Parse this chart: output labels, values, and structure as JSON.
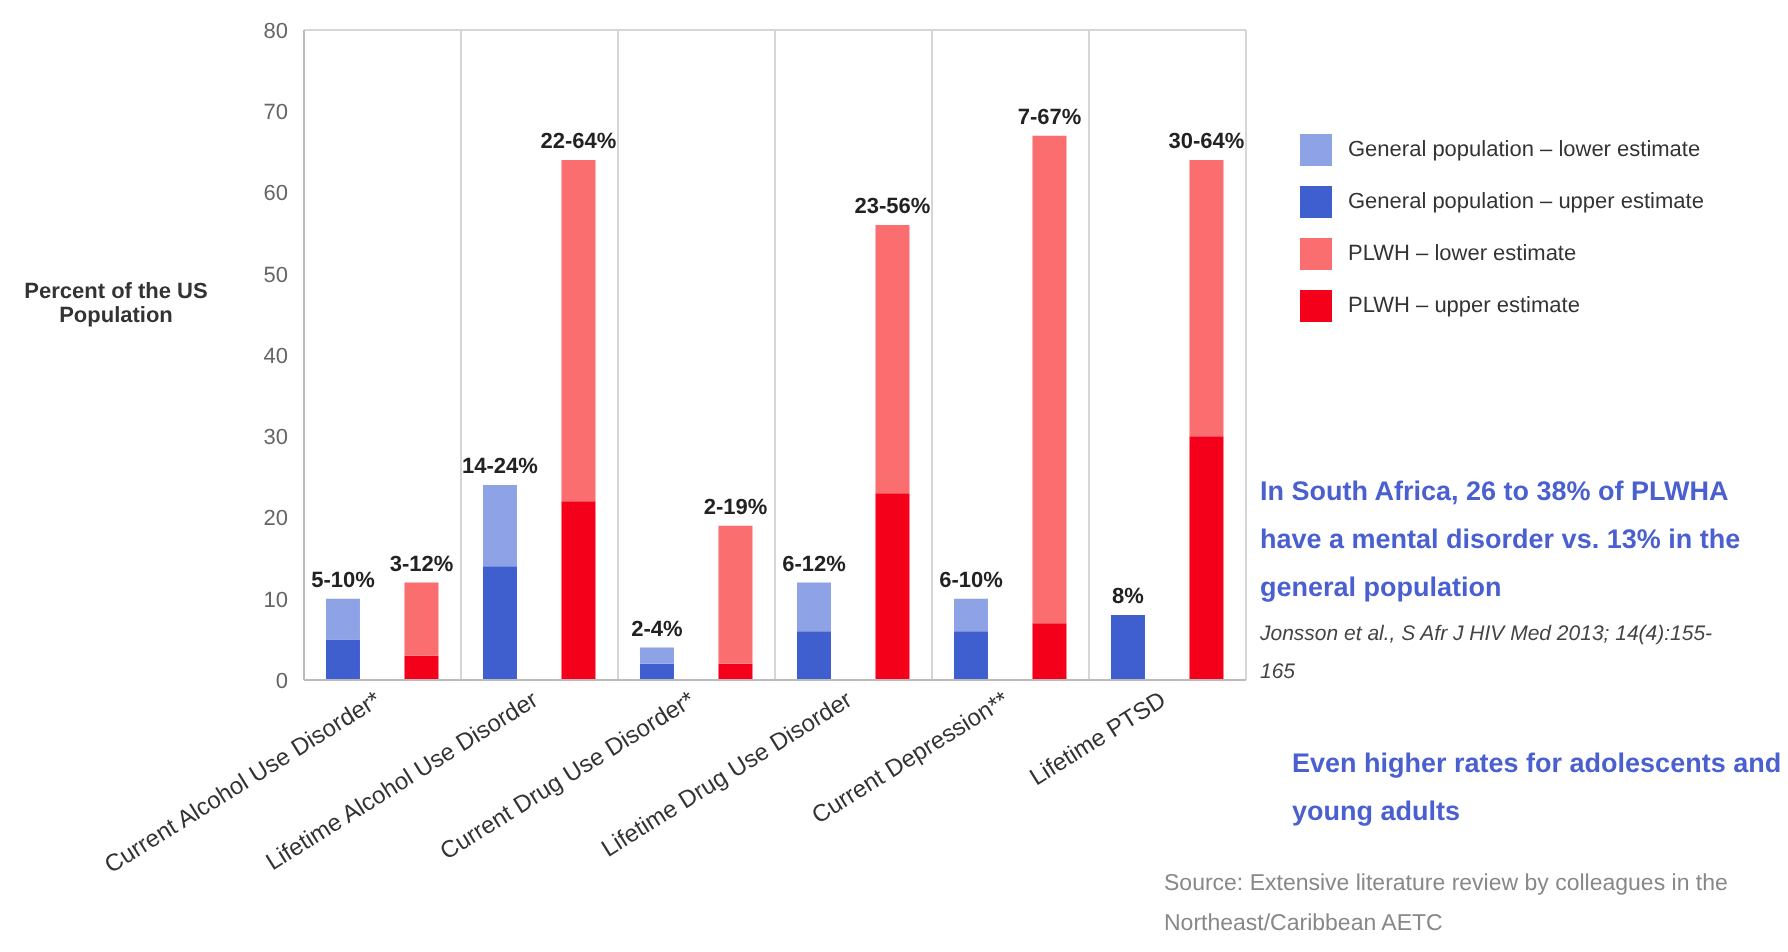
{
  "chart_data": {
    "type": "bar",
    "stacked": true,
    "ylabel": "Percent of the US Population",
    "categories": [
      "Current Alcohol Use Disorder*",
      null,
      "Lifetime Alcohol Use Disorder",
      null,
      "Current Drug Use Disorder*",
      null,
      "Lifetime Drug Use Disorder",
      null,
      "Current Depression**",
      null,
      "Lifetime PTSD",
      null
    ],
    "series": [
      {
        "name": "General population – upper estimate",
        "color": "#3f5fcf",
        "values": [
          5,
          null,
          14,
          null,
          2,
          null,
          6,
          null,
          6,
          null,
          8,
          null
        ]
      },
      {
        "name": "General population – lower estimate",
        "color": "#8ea3e6",
        "values": [
          5,
          null,
          10,
          null,
          2,
          null,
          6,
          null,
          4,
          null,
          null,
          null
        ]
      },
      {
        "name": "PLWH – upper estimate",
        "color": "#f5001a",
        "values": [
          null,
          3,
          null,
          22,
          null,
          2,
          null,
          23,
          null,
          7,
          null,
          30
        ]
      },
      {
        "name": "PLWH – lower estimate",
        "color": "#fb6e70",
        "values": [
          null,
          9,
          null,
          42,
          null,
          17,
          null,
          33,
          null,
          60,
          null,
          34
        ]
      }
    ],
    "totals": [
      "5-10%",
      "3-12%",
      "14-24%",
      "22-64%",
      "2-4%",
      "2-19%",
      "6-12%",
      "23-56%",
      "6-10%",
      "7-67%",
      "8%",
      "30-64%"
    ],
    "ylim": [
      0,
      80
    ],
    "yticks": [
      0,
      10,
      20,
      30,
      40,
      50,
      60,
      70,
      80
    ],
    "grid": "x",
    "legend": "right",
    "annotations": [
      "In South Africa, 26 to 38% of PLWHA have a mental disorder vs. 13% in the general population",
      "Jonsson et al., S Afr J HIV Med 2013; 14(4):155-165",
      "Even higher rates for adolescents and young adults",
      "Source: Extensive literature review by colleagues in the Northeast/Caribbean AETC"
    ]
  }
}
